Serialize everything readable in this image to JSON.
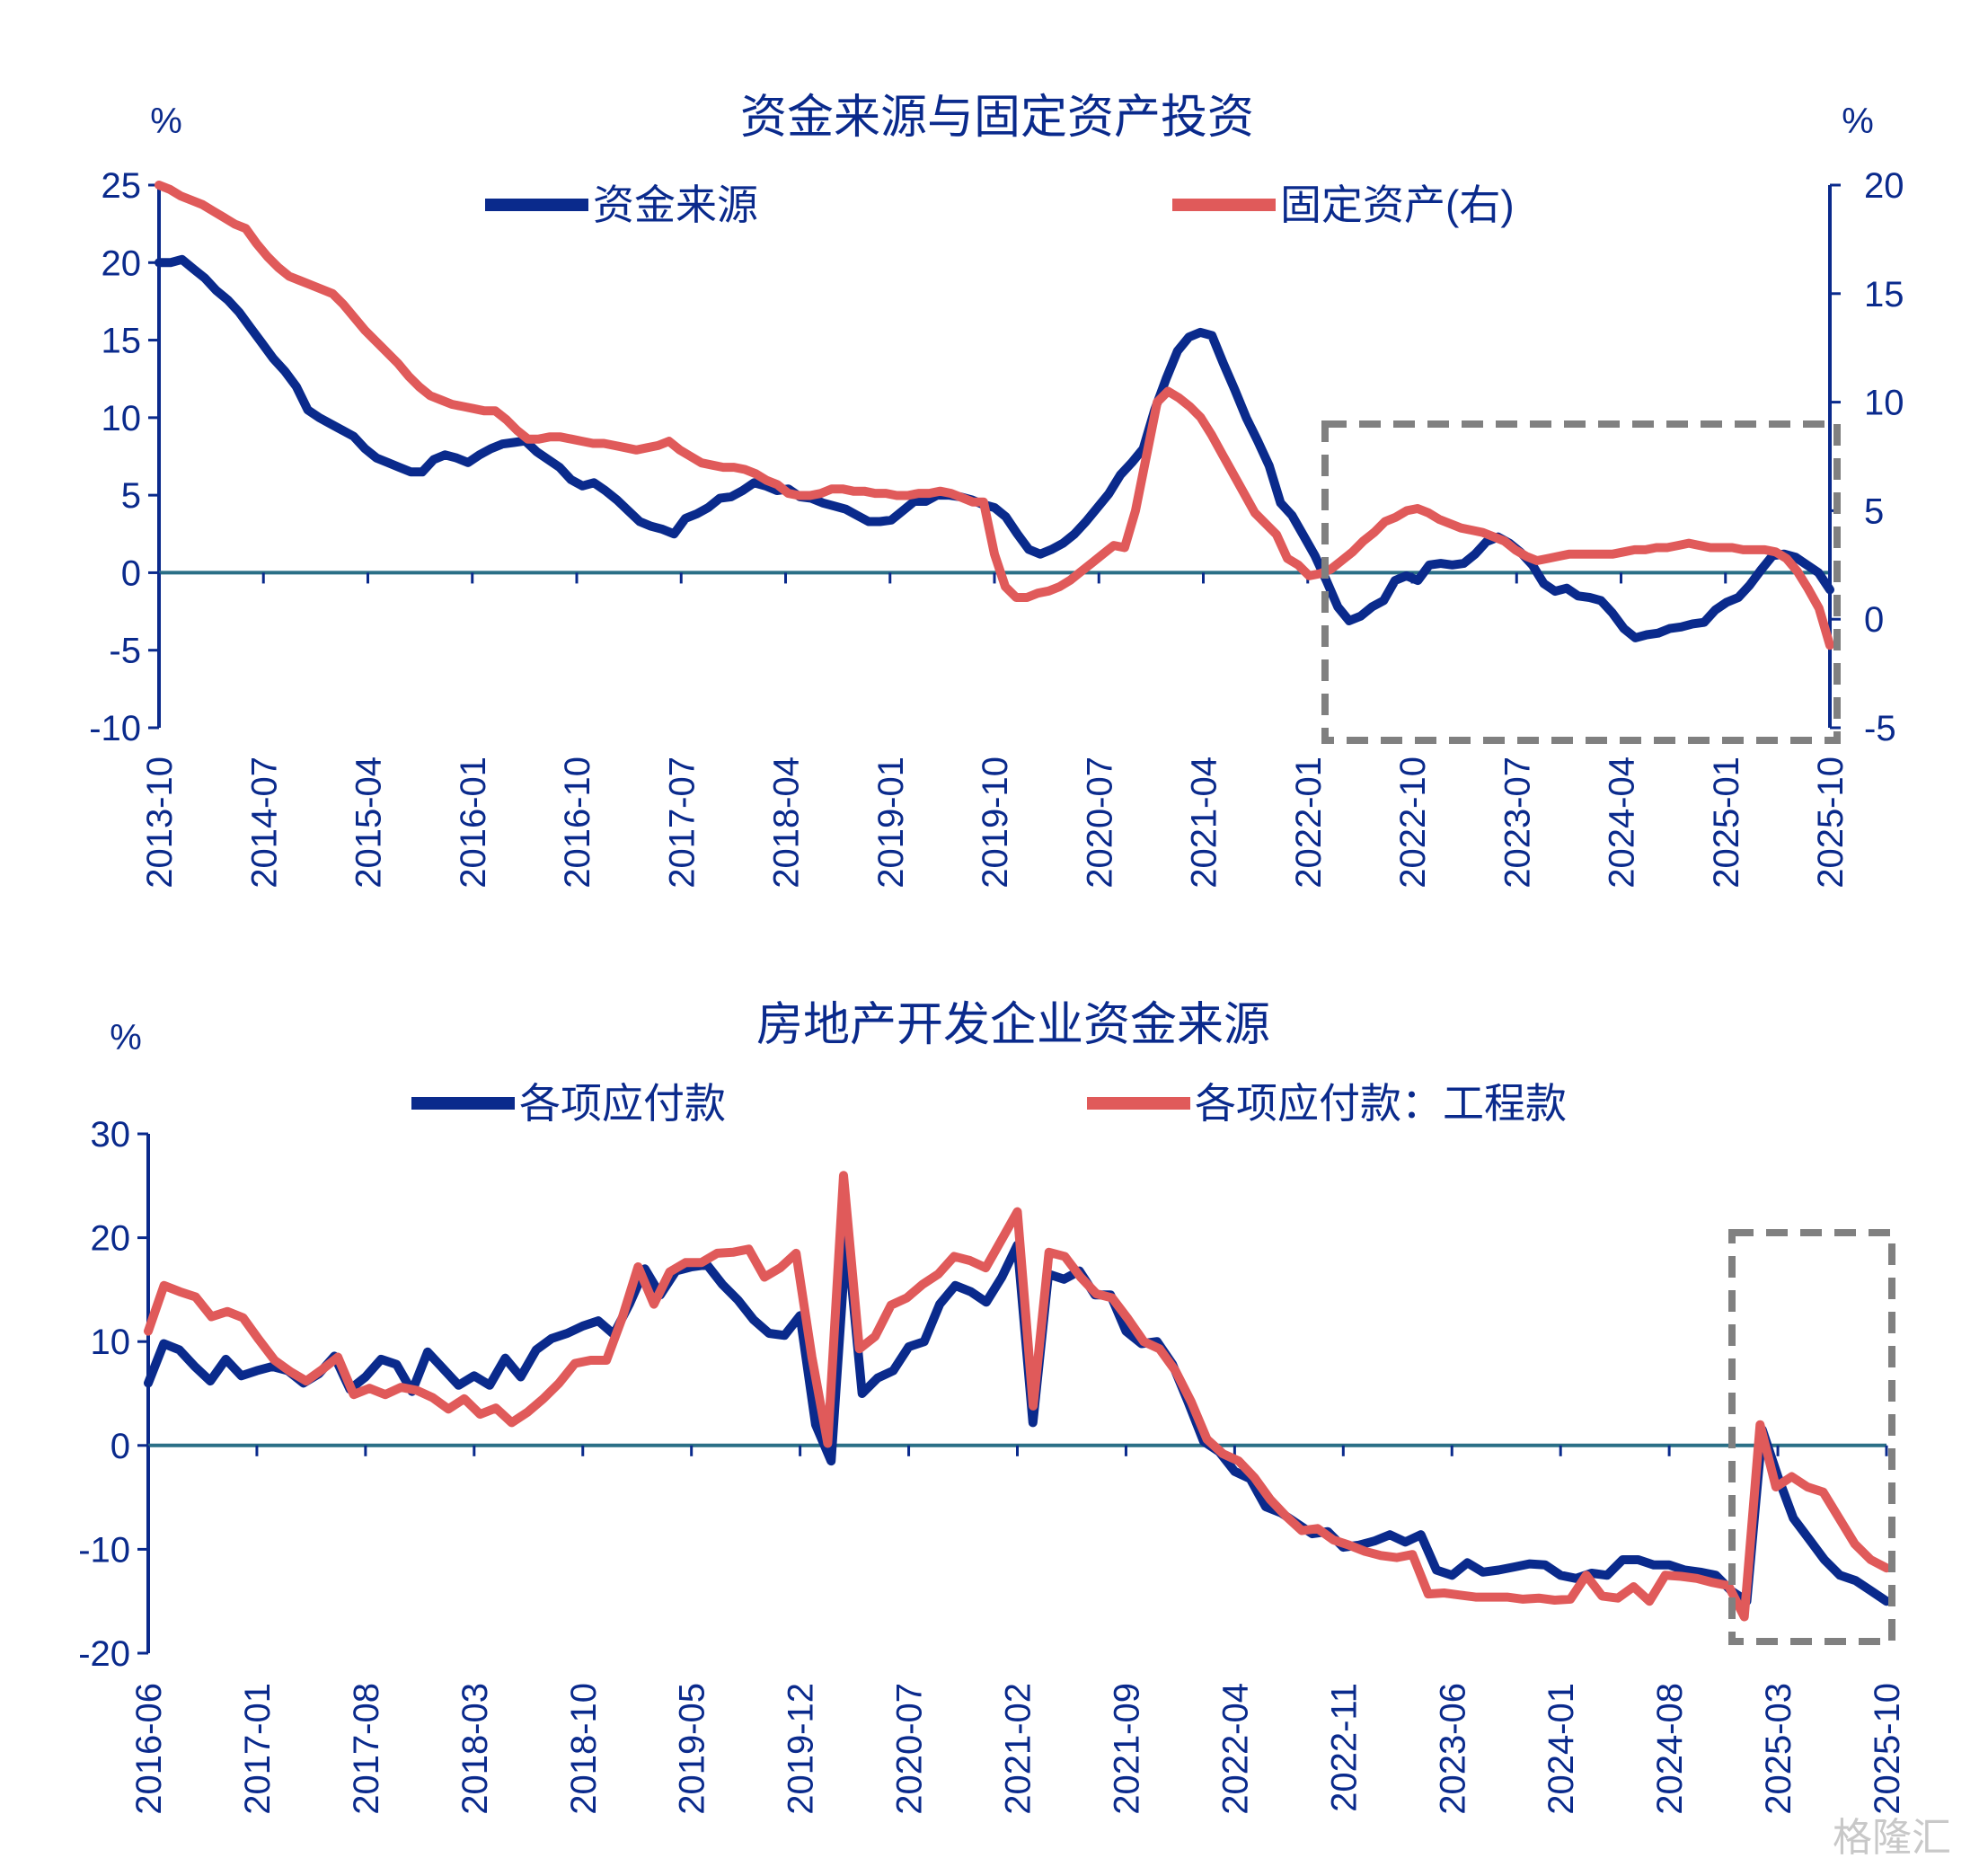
{
  "colors": {
    "blue": "#0a2a8c",
    "red": "#e05a5a",
    "box": "#808080"
  },
  "watermark": "格隆汇",
  "chart_data": [
    {
      "type": "line",
      "title": "资金来源与固定资产投资",
      "ylabel_left": "%",
      "ylabel_right": "%",
      "ylim_left": [
        -10,
        25
      ],
      "ylim_right": [
        -5,
        20
      ],
      "yticks_left": [
        25,
        20,
        15,
        10,
        5,
        0,
        -5,
        -10
      ],
      "yticks_right": [
        20,
        15,
        10,
        5,
        0,
        -5
      ],
      "xtick_labels": [
        "2013-10",
        "2014-07",
        "2015-04",
        "2016-01",
        "2016-10",
        "2017-07",
        "2018-04",
        "2019-01",
        "2019-10",
        "2020-07",
        "2021-04",
        "2022-01",
        "2022-10",
        "2023-07",
        "2024-04",
        "2025-01",
        "2025-10"
      ],
      "highlight_range": [
        "2022-01",
        "2025-10"
      ],
      "series": [
        {
          "name": "资金来源",
          "axis": "left",
          "values": [
            20,
            20,
            20.2,
            19.6,
            19,
            18.2,
            17.6,
            16.8,
            15.8,
            14.8,
            13.8,
            13,
            12,
            10.5,
            10,
            9.6,
            9.2,
            8.8,
            8,
            7.4,
            7.1,
            6.8,
            6.5,
            6.5,
            7.3,
            7.6,
            7.4,
            7.1,
            7.6,
            8,
            8.3,
            8.4,
            8.5,
            7.8,
            7.3,
            6.8,
            6,
            5.6,
            5.8,
            5.3,
            4.7,
            4,
            3.3,
            3,
            2.8,
            2.5,
            3.5,
            3.8,
            4.2,
            4.8,
            4.9,
            5.3,
            5.8,
            5.6,
            5.3,
            5.4,
            4.9,
            4.8,
            4.5,
            4.3,
            4.1,
            3.7,
            3.3,
            3.3,
            3.4,
            4,
            4.6,
            4.6,
            5,
            5,
            4.9,
            4.7,
            4.4,
            4.2,
            3.6,
            2.5,
            1.5,
            1.2,
            1.5,
            1.9,
            2.5,
            3.3,
            4.2,
            5.1,
            6.3,
            7.1,
            8,
            10.5,
            12.5,
            14.3,
            15.2,
            15.5,
            15.3,
            13.5,
            11.8,
            10,
            8.5,
            6.9,
            4.5,
            3.7,
            2.4,
            1.1,
            -0.5,
            -2.2,
            -3.1,
            -2.8,
            -2.2,
            -1.8,
            -0.5,
            -0.2,
            -0.5,
            0.5,
            0.6,
            0.5,
            0.6,
            1.2,
            2,
            2.3,
            1.9,
            1.3,
            0.5,
            -0.7,
            -1.2,
            -1,
            -1.5,
            -1.6,
            -1.8,
            -2.6,
            -3.6,
            -4.2,
            -4,
            -3.9,
            -3.6,
            -3.5,
            -3.3,
            -3.2,
            -2.4,
            -1.9,
            -1.6,
            -0.8,
            0.2,
            1.1,
            1.2,
            1,
            0.5,
            0,
            -1.1
          ]
        },
        {
          "name": "固定资产(右)",
          "axis": "right",
          "values": [
            20,
            19.8,
            19.5,
            19.3,
            19.1,
            18.8,
            18.5,
            18.2,
            18,
            17.3,
            16.7,
            16.2,
            15.8,
            15.6,
            15.4,
            15.2,
            15,
            14.5,
            13.9,
            13.3,
            12.8,
            12.3,
            11.8,
            11.2,
            10.7,
            10.3,
            10.1,
            9.9,
            9.8,
            9.7,
            9.6,
            9.6,
            9.2,
            8.7,
            8.3,
            8.3,
            8.4,
            8.4,
            8.3,
            8.2,
            8.1,
            8.1,
            8,
            7.9,
            7.8,
            7.9,
            8,
            8.2,
            7.8,
            7.5,
            7.2,
            7.1,
            7,
            7,
            6.9,
            6.7,
            6.4,
            6.2,
            5.8,
            5.7,
            5.7,
            5.8,
            6,
            6,
            5.9,
            5.9,
            5.8,
            5.8,
            5.7,
            5.7,
            5.8,
            5.8,
            5.9,
            5.8,
            5.6,
            5.4,
            5.4,
            3,
            1.5,
            1,
            1,
            1.2,
            1.3,
            1.5,
            1.8,
            2.2,
            2.6,
            3,
            3.4,
            3.3,
            5,
            7.5,
            10,
            10.5,
            10.2,
            9.8,
            9.3,
            8.5,
            7.6,
            6.7,
            5.8,
            4.9,
            4.4,
            3.9,
            2.8,
            2.5,
            2,
            2.1,
            2.3,
            2.7,
            3.1,
            3.6,
            4,
            4.5,
            4.7,
            5,
            5.1,
            4.9,
            4.6,
            4.4,
            4.2,
            4.1,
            4,
            3.8,
            3.6,
            3.2,
            2.9,
            2.7,
            2.8,
            2.9,
            3,
            3,
            3,
            3,
            3,
            3.1,
            3.2,
            3.2,
            3.3,
            3.3,
            3.4,
            3.5,
            3.4,
            3.3,
            3.3,
            3.3,
            3.2,
            3.2,
            3.2,
            3.1,
            2.8,
            2.2,
            1.4,
            0.5,
            -1.2
          ]
        }
      ]
    },
    {
      "type": "line",
      "title": "房地产开发企业资金来源",
      "ylabel_left": "%",
      "ylim": [
        -20,
        30
      ],
      "yticks": [
        30,
        20,
        10,
        0,
        -10,
        -20
      ],
      "xtick_labels": [
        "2016-06",
        "2017-01",
        "2017-08",
        "2018-03",
        "2018-10",
        "2019-05",
        "2019-12",
        "2020-07",
        "2021-02",
        "2021-09",
        "2022-04",
        "2022-11",
        "2023-06",
        "2024-01",
        "2024-08",
        "2025-03",
        "2025-10"
      ],
      "highlight_range": [
        "2024-12",
        "2025-10"
      ],
      "series": [
        {
          "name": "各项应付款",
          "values": [
            6,
            9.8,
            9.2,
            7.6,
            6.2,
            8.3,
            6.7,
            7.2,
            7.6,
            7.2,
            6,
            6.9,
            8.6,
            5.4,
            6.6,
            8.3,
            7.8,
            5.2,
            9,
            7.4,
            5.8,
            6.7,
            5.8,
            8.4,
            6.6,
            9.2,
            10.3,
            10.8,
            11.5,
            12,
            10.7,
            13.6,
            17,
            14.5,
            16.8,
            17.2,
            17.4,
            15.5,
            14,
            12.1,
            10.8,
            10.6,
            12.5,
            2,
            -1.5,
            20.5,
            5,
            6.5,
            7.2,
            9.5,
            10,
            13.6,
            15.4,
            14.8,
            13.8,
            16.2,
            19.3,
            2.2,
            16.5,
            16,
            16.8,
            14.5,
            14.5,
            11,
            9.8,
            10,
            7.8,
            4.2,
            0.4,
            -0.6,
            -2.5,
            -3.2,
            -5.9,
            -6.5,
            -7.5,
            -8.5,
            -8.3,
            -9.8,
            -9.6,
            -9.2,
            -8.6,
            -9.3,
            -8.6,
            -12,
            -12.5,
            -11.3,
            -12.2,
            -12,
            -11.7,
            -11.4,
            -11.5,
            -12.5,
            -12.8,
            -12.3,
            -12.5,
            -11,
            -11,
            -11.5,
            -11.5,
            -12,
            -12.2,
            -12.5,
            -14,
            -15,
            1.5,
            -3,
            -7,
            -9,
            -11,
            -12.5,
            -13,
            -14,
            -15
          ]
        },
        {
          "name": "各项应付款：工程款",
          "values": [
            11,
            15.4,
            14.8,
            14.3,
            12.4,
            12.9,
            12.3,
            10.2,
            8.2,
            7.1,
            6.2,
            7.3,
            8.5,
            4.9,
            5.5,
            4.9,
            5.6,
            5.3,
            4.6,
            3.5,
            4.5,
            3,
            3.6,
            2.2,
            3.2,
            4.5,
            6,
            7.9,
            8.2,
            8.2,
            12.3,
            17.2,
            13.6,
            16.7,
            17.6,
            17.6,
            18.5,
            18.6,
            18.9,
            16.2,
            17.1,
            18.5,
            8.5,
            0.2,
            26,
            9.3,
            10.5,
            13.5,
            14.2,
            15.5,
            16.5,
            18.2,
            17.8,
            17.1,
            19.8,
            22.5,
            3.8,
            18.6,
            18.2,
            16.2,
            14.6,
            14.2,
            12.2,
            10,
            9.3,
            7.2,
            4.2,
            0.6,
            -0.8,
            -1.5,
            -3.1,
            -5.2,
            -6.8,
            -8.2,
            -8,
            -9.1,
            -9.6,
            -10.2,
            -10.6,
            -10.8,
            -10.5,
            -14.3,
            -14.2,
            -14.4,
            -14.6,
            -14.6,
            -14.6,
            -14.8,
            -14.7,
            -14.9,
            -14.8,
            -12.5,
            -14.5,
            -14.7,
            -13.6,
            -15,
            -12.5,
            -12.6,
            -12.8,
            -13.2,
            -13.5,
            -16.5,
            2,
            -4,
            -3,
            -4,
            -4.5,
            -7,
            -9.5,
            -11,
            -11.8
          ]
        }
      ]
    }
  ]
}
